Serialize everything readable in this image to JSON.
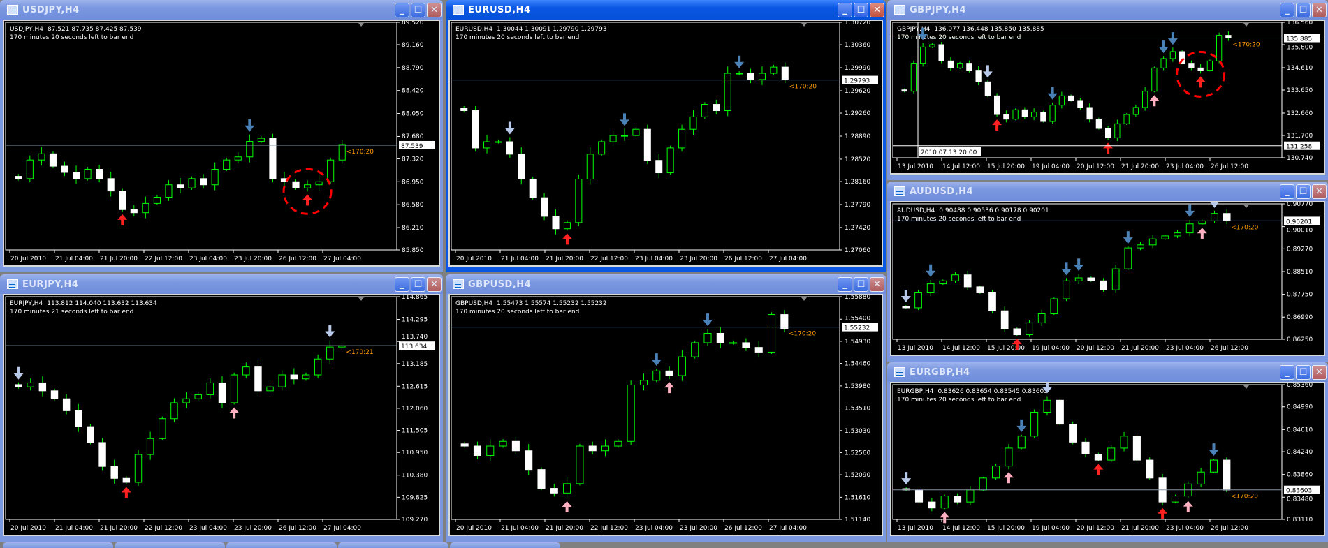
{
  "charts": [
    {
      "title": "USDJPY,H4",
      "symbol": "USDJPY,H4",
      "ohlc": "87.521 87.735 87.425 87.539",
      "countdown": "170 minutes 20 seconds left to bar end",
      "bar_timer": "<170:20",
      "current_price": "87.539",
      "active": false,
      "price_ticks": [
        "89.520",
        "89.160",
        "88.790",
        "88.420",
        "88.050",
        "87.680",
        "87.320",
        "86.950",
        "86.580",
        "86.210",
        "85.850"
      ],
      "time_labels": [
        "20 Jul 2010",
        "21 Jul 04:00",
        "21 Jul 20:00",
        "22 Jul 12:00",
        "23 Jul 04:00",
        "23 Jul 20:00",
        "26 Jul 12:00",
        "27 Jul 04:00"
      ],
      "closes": [
        87.0,
        87.3,
        87.4,
        87.2,
        87.1,
        87.0,
        87.15,
        87.0,
        86.8,
        86.5,
        86.45,
        86.6,
        86.7,
        86.9,
        86.85,
        87.0,
        86.9,
        87.15,
        87.3,
        87.35,
        87.6,
        87.65,
        87.0,
        86.95,
        86.85,
        86.9,
        86.95,
        87.3,
        87.55
      ],
      "arrows": [
        {
          "i": 20,
          "dir": "down",
          "color": "#4a82b8"
        },
        {
          "i": 9,
          "dir": "up",
          "color": "#ff2020"
        },
        {
          "i": 25,
          "dir": "up",
          "color": "#ff2020"
        }
      ],
      "circle": 25
    },
    {
      "title": "EURUSD,H4",
      "symbol": "EURUSD,H4",
      "ohlc": "1.30044 1.30091 1.29790 1.29793",
      "countdown": "170 minutes 20 seconds left to bar end",
      "bar_timer": "<170:20",
      "current_price": "1.29793",
      "active": true,
      "price_ticks": [
        "1.30720",
        "1.30360",
        "1.29990",
        "1.29620",
        "1.29260",
        "1.28890",
        "1.28520",
        "1.28160",
        "1.27790",
        "1.27420",
        "1.27060"
      ],
      "time_labels": [
        "20 Jul 2010",
        "21 Jul 04:00",
        "21 Jul 20:00",
        "22 Jul 12:00",
        "23 Jul 04:00",
        "23 Jul 20:00",
        "26 Jul 12:00",
        "27 Jul 04:00"
      ],
      "closes": [
        1.293,
        1.287,
        1.288,
        1.288,
        1.286,
        1.282,
        1.279,
        1.276,
        1.274,
        1.275,
        1.282,
        1.286,
        1.288,
        1.289,
        1.289,
        1.29,
        1.285,
        1.283,
        1.287,
        1.29,
        1.292,
        1.294,
        1.293,
        1.299,
        1.299,
        1.298,
        1.299,
        1.3,
        1.298
      ],
      "arrows": [
        {
          "i": 4,
          "dir": "down",
          "color": "#b8c8e8"
        },
        {
          "i": 14,
          "dir": "down",
          "color": "#4a82b8"
        },
        {
          "i": 24,
          "dir": "down",
          "color": "#4a82b8"
        },
        {
          "i": 9,
          "dir": "up",
          "color": "#ff2020"
        }
      ]
    },
    {
      "title": "GBPJPY,H4",
      "symbol": "GBPJPY,H4",
      "ohlc": "136.077 136.448 135.850 135.885",
      "countdown": "170 minutes 20 seconds left to bar end",
      "bar_timer": "<170:20",
      "current_price": "135.885",
      "active": false,
      "price_ticks": [
        "136.560",
        "135.600",
        "134.610",
        "133.650",
        "132.660",
        "131.700",
        "130.740"
      ],
      "time_labels": [
        "13 Jul 2010",
        "14 Jul 12:00",
        "15 Jul 20:00",
        "19 Jul 04:00",
        "20 Jul 12:00",
        "21 Jul 20:00",
        "23 Jul 04:00",
        "26 Jul 12:00"
      ],
      "closes": [
        133.6,
        134.8,
        135.5,
        135.6,
        134.9,
        134.6,
        134.8,
        134.5,
        134.0,
        133.4,
        132.6,
        132.4,
        132.8,
        132.5,
        132.7,
        132.3,
        133.0,
        133.4,
        133.2,
        132.9,
        132.4,
        132.0,
        131.6,
        132.2,
        132.6,
        132.9,
        133.6,
        134.6,
        135.0,
        135.3,
        134.8,
        134.6,
        134.5,
        134.9,
        136.0,
        135.9
      ],
      "arrows": [
        {
          "i": 2,
          "dir": "down",
          "color": "#4a82b8"
        },
        {
          "i": 9,
          "dir": "down",
          "color": "#b8c8e8"
        },
        {
          "i": 16,
          "dir": "down",
          "color": "#4a82b8"
        },
        {
          "i": 28,
          "dir": "down",
          "color": "#4a82b8"
        },
        {
          "i": 29,
          "dir": "down",
          "color": "#4a82b8"
        },
        {
          "i": 10,
          "dir": "up",
          "color": "#ff2020"
        },
        {
          "i": 22,
          "dir": "up",
          "color": "#ff2020"
        },
        {
          "i": 27,
          "dir": "up",
          "color": "#ffb0c0"
        },
        {
          "i": 32,
          "dir": "up",
          "color": "#ff2020"
        }
      ],
      "circle": 32,
      "crosshair": {
        "time": "2010.07.13 20:00",
        "price": "131.258"
      }
    },
    {
      "title": "AUDUSD,H4",
      "symbol": "AUDUSD,H4",
      "ohlc": "0.90488 0.90536 0.90178 0.90201",
      "countdown": "170 minutes 20 seconds left to bar end",
      "bar_timer": "<170:20",
      "current_price": "0.90201",
      "active": false,
      "price_ticks": [
        "0.90770",
        "0.90010",
        "0.89270",
        "0.88510",
        "0.87750",
        "0.86990",
        "0.86250"
      ],
      "time_labels": [
        "13 Jul 2010",
        "14 Jul 12:00",
        "15 Jul 20:00",
        "19 Jul 04:00",
        "20 Jul 12:00",
        "21 Jul 20:00",
        "23 Jul 04:00",
        "26 Jul 12:00"
      ],
      "closes": [
        0.873,
        0.878,
        0.881,
        0.882,
        0.884,
        0.88,
        0.878,
        0.872,
        0.866,
        0.864,
        0.868,
        0.871,
        0.876,
        0.882,
        0.883,
        0.882,
        0.879,
        0.886,
        0.893,
        0.894,
        0.896,
        0.897,
        0.898,
        0.901,
        0.902,
        0.9045,
        0.902
      ],
      "arrows": [
        {
          "i": 0,
          "dir": "down",
          "color": "#b8c8e8"
        },
        {
          "i": 2,
          "dir": "down",
          "color": "#4a82b8"
        },
        {
          "i": 9,
          "dir": "up",
          "color": "#ff2020"
        },
        {
          "i": 13,
          "dir": "down",
          "color": "#4a82b8"
        },
        {
          "i": 14,
          "dir": "down",
          "color": "#4a82b8"
        },
        {
          "i": 18,
          "dir": "down",
          "color": "#4a82b8"
        },
        {
          "i": 23,
          "dir": "down",
          "color": "#4a82b8"
        },
        {
          "i": 25,
          "dir": "down",
          "color": "#b8c8e8"
        },
        {
          "i": 24,
          "dir": "up",
          "color": "#ffb0c0"
        }
      ]
    },
    {
      "title": "EURGBP,H4",
      "symbol": "EURGBP,H4",
      "ohlc": "0.83626 0.83654 0.83545 0.83603",
      "countdown": "170 minutes 20 seconds left to bar end",
      "bar_timer": "<170:20",
      "current_price": "0.83603",
      "active": false,
      "price_ticks": [
        "0.85360",
        "0.84990",
        "0.84610",
        "0.84240",
        "0.83860",
        "0.83480",
        "0.83110"
      ],
      "time_labels": [
        "13 Jul 2010",
        "14 Jul 12:00",
        "15 Jul 20:00",
        "19 Jul 04:00",
        "20 Jul 12:00",
        "21 Jul 20:00",
        "23 Jul 04:00",
        "26 Jul 12:00"
      ],
      "closes": [
        0.836,
        0.834,
        0.833,
        0.835,
        0.834,
        0.836,
        0.838,
        0.84,
        0.843,
        0.845,
        0.849,
        0.851,
        0.847,
        0.844,
        0.842,
        0.841,
        0.843,
        0.845,
        0.841,
        0.838,
        0.834,
        0.835,
        0.837,
        0.839,
        0.841,
        0.836
      ],
      "arrows": [
        {
          "i": 0,
          "dir": "down",
          "color": "#b8c8e8"
        },
        {
          "i": 9,
          "dir": "down",
          "color": "#4a82b8"
        },
        {
          "i": 11,
          "dir": "down",
          "color": "#b8c8e8"
        },
        {
          "i": 15,
          "dir": "up",
          "color": "#ff2020"
        },
        {
          "i": 20,
          "dir": "up",
          "color": "#ff2020"
        },
        {
          "i": 24,
          "dir": "down",
          "color": "#4a82b8"
        },
        {
          "i": 3,
          "dir": "up",
          "color": "#ffb0c0"
        },
        {
          "i": 8,
          "dir": "up",
          "color": "#ffb0c0"
        },
        {
          "i": 22,
          "dir": "up",
          "color": "#ffb0c0"
        }
      ]
    },
    {
      "title": "EURJPY,H4",
      "symbol": "EURJPY,H4",
      "ohlc": "113.812 114.040 113.632 113.634",
      "countdown": "170 minutes 21 seconds left to bar end",
      "bar_timer": "<170:21",
      "current_price": "113.634",
      "active": false,
      "price_ticks": [
        "114.865",
        "114.295",
        "113.740",
        "113.185",
        "112.615",
        "112.060",
        "111.505",
        "110.950",
        "110.380",
        "109.825",
        "109.270"
      ],
      "time_labels": [
        "20 Jul 2010",
        "21 Jul 04:00",
        "21 Jul 20:00",
        "22 Jul 12:00",
        "23 Jul 04:00",
        "23 Jul 20:00",
        "26 Jul 12:00",
        "27 Jul 04:00"
      ],
      "closes": [
        112.6,
        112.7,
        112.5,
        112.3,
        112.0,
        111.6,
        111.2,
        110.6,
        110.3,
        110.2,
        110.9,
        111.3,
        111.8,
        112.2,
        112.3,
        112.4,
        112.7,
        112.2,
        112.9,
        113.1,
        112.5,
        112.6,
        112.9,
        112.8,
        112.9,
        113.3,
        113.6,
        113.63
      ],
      "arrows": [
        {
          "i": 0,
          "dir": "down",
          "color": "#b8c8e8"
        },
        {
          "i": 26,
          "dir": "down",
          "color": "#b8c8e8"
        },
        {
          "i": 9,
          "dir": "up",
          "color": "#ff2020"
        },
        {
          "i": 18,
          "dir": "up",
          "color": "#ffb0c0"
        }
      ]
    },
    {
      "title": "GBPUSD,H4",
      "symbol": "GBPUSD,H4",
      "ohlc": "1.55473 1.55574 1.55232 1.55232",
      "countdown": "170 minutes 20 seconds left to bar end",
      "bar_timer": "<170:20",
      "current_price": "1.55232",
      "active": false,
      "price_ticks": [
        "1.55880",
        "1.55400",
        "1.54930",
        "1.54460",
        "1.53980",
        "1.53510",
        "1.53030",
        "1.52560",
        "1.52090",
        "1.51610",
        "1.51140"
      ],
      "time_labels": [
        "20 Jul 2010",
        "21 Jul 04:00",
        "21 Jul 20:00",
        "22 Jul 12:00",
        "23 Jul 04:00",
        "23 Jul 20:00",
        "26 Jul 12:00",
        "27 Jul 04:00"
      ],
      "closes": [
        1.527,
        1.525,
        1.527,
        1.528,
        1.526,
        1.522,
        1.518,
        1.517,
        1.519,
        1.527,
        1.526,
        1.527,
        1.528,
        1.54,
        1.541,
        1.543,
        1.542,
        1.546,
        1.549,
        1.551,
        1.549,
        1.549,
        1.548,
        1.547,
        1.555,
        1.552
      ],
      "arrows": [
        {
          "i": 15,
          "dir": "down",
          "color": "#4a82b8"
        },
        {
          "i": 19,
          "dir": "down",
          "color": "#4a82b8"
        },
        {
          "i": 16,
          "dir": "up",
          "color": "#ffb0c0"
        },
        {
          "i": 8,
          "dir": "up",
          "color": "#ffb0c0"
        }
      ]
    }
  ],
  "colors": {
    "bull_outline": "#00ff00",
    "bear_body": "#ffffff",
    "price_line": "#8494a8",
    "timer": "#ff9900",
    "circle": "#ff0000"
  }
}
